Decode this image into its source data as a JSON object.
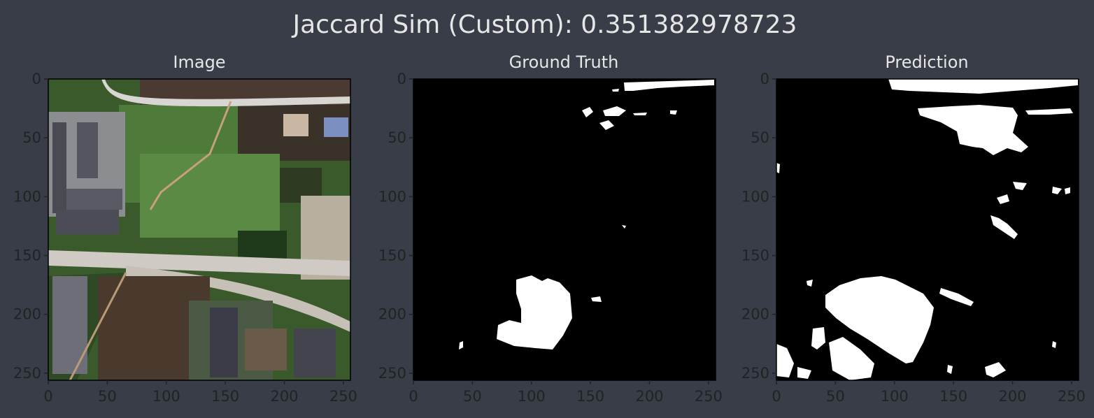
{
  "figure": {
    "title": "Jaccard Sim (Custom): 0.351382978723"
  },
  "colors": {
    "background": "#383d48",
    "text": "#e6e6e6",
    "tick_text": "#222222",
    "mask_foreground": "#ffffff",
    "mask_background": "#000000"
  },
  "chart_data": [
    {
      "type": "image",
      "title": "Image",
      "xlim": [
        0,
        256
      ],
      "ylim": [
        256,
        0
      ],
      "xticks": [
        0,
        50,
        100,
        150,
        200,
        250
      ],
      "yticks": [
        0,
        50,
        100,
        150,
        200,
        250
      ],
      "content": "satellite-image"
    },
    {
      "type": "heatmap",
      "title": "Ground Truth",
      "xlim": [
        0,
        256
      ],
      "ylim": [
        256,
        0
      ],
      "xticks": [
        0,
        50,
        100,
        150,
        200,
        250
      ],
      "yticks": [
        0,
        50,
        100,
        150,
        200,
        250
      ],
      "content": "binary-mask"
    },
    {
      "type": "heatmap",
      "title": "Prediction",
      "xlim": [
        0,
        256
      ],
      "ylim": [
        256,
        0
      ],
      "xticks": [
        0,
        50,
        100,
        150,
        200,
        250
      ],
      "yticks": [
        0,
        50,
        100,
        150,
        200,
        250
      ],
      "content": "binary-mask"
    }
  ]
}
